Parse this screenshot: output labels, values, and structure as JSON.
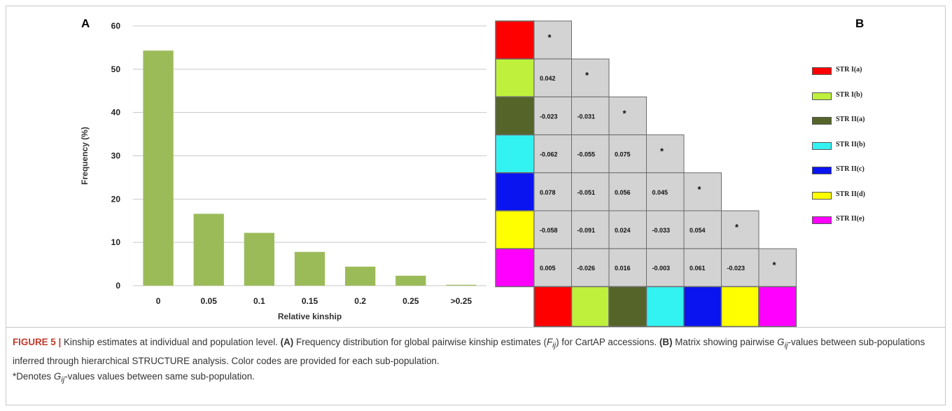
{
  "panel_a": {
    "letter": "A"
  },
  "panel_b": {
    "letter": "B"
  },
  "chart_data": [
    {
      "type": "bar",
      "categories": [
        "0",
        "0.05",
        "0.1",
        "0.15",
        "0.2",
        "0.25",
        ">0.25"
      ],
      "values": [
        54.3,
        16.6,
        12.2,
        7.8,
        4.4,
        2.3,
        0.2
      ],
      "xlabel": "Relative kinship",
      "ylabel": "Frequency (%)",
      "ylim": [
        0,
        60
      ],
      "yticks": [
        "0",
        "10",
        "20",
        "30",
        "40",
        "50",
        "60"
      ],
      "grid": true,
      "bar_color": "#9bbb59"
    },
    {
      "type": "heatmap",
      "populations": [
        {
          "label": "STR I(a)",
          "color": "#ff0000"
        },
        {
          "label": "STR I(b)",
          "color": "#bff03c"
        },
        {
          "label": "STR II(a)",
          "color": "#55652a"
        },
        {
          "label": "STR II(b)",
          "color": "#33f2f2"
        },
        {
          "label": "STR II(c)",
          "color": "#0a14f0"
        },
        {
          "label": "STR II(d)",
          "color": "#ffff00"
        },
        {
          "label": "STR II(e)",
          "color": "#ff00ff"
        }
      ],
      "diagonal_marker": "*",
      "matrix": [
        [
          "*"
        ],
        [
          "0.042",
          "*"
        ],
        [
          "-0.023",
          "-0.031",
          "*"
        ],
        [
          "-0.062",
          "-0.055",
          "0.075",
          "*"
        ],
        [
          "0.078",
          "-0.051",
          "0.056",
          "0.045",
          "*"
        ],
        [
          "-0.058",
          "-0.091",
          "0.024",
          "-0.033",
          "0.054",
          "*"
        ],
        [
          "0.005",
          "-0.026",
          "0.016",
          "-0.003",
          "0.061",
          "-0.023",
          "*"
        ]
      ],
      "cell_color": "#d3d3d3"
    }
  ],
  "caption": {
    "figure_label": "FIGURE 5 |",
    "intro": " Kinship estimates at individual and population level. ",
    "a_label": "(A)",
    "a_text_1": " Frequency distribution for global pairwise kinship estimates (",
    "a_sym": "F",
    "a_sub": "ij",
    "a_text_2": ") for CartAP accessions. ",
    "b_label": "(B)",
    "b_text_1": " Matrix showing pairwise ",
    "b_sym": "G",
    "b_sub": "ij",
    "b_text_2": "-values between sub-populations inferred through hierarchical STRUCTURE analysis. Color codes are provided for each sub-population.",
    "note_1": "*Denotes ",
    "note_sym": "G",
    "note_sub": "ij",
    "note_2": "-values values between same sub-population."
  }
}
